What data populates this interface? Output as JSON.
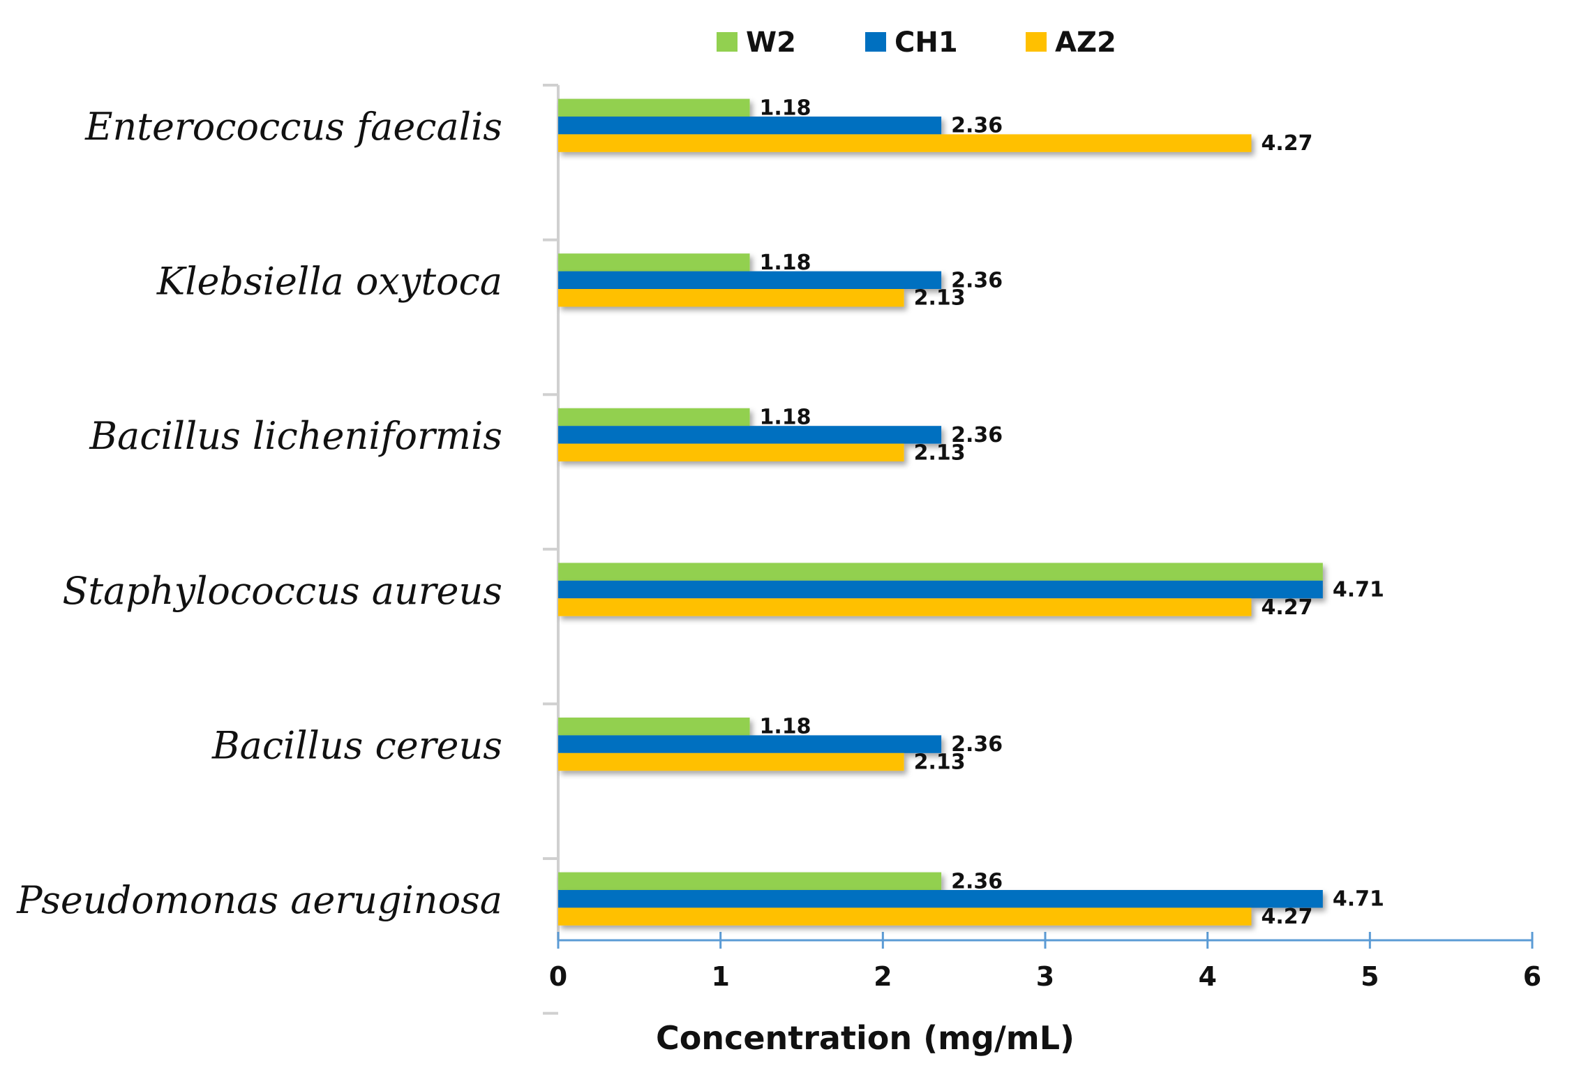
{
  "chart_data": {
    "type": "bar",
    "orientation": "horizontal",
    "title": "",
    "xlabel": "Concentration (mg/mL)",
    "ylabel": "",
    "xlim": [
      0,
      6
    ],
    "xticks": [
      0,
      1,
      2,
      3,
      4,
      5,
      6
    ],
    "legend_position": "top-center",
    "grid": false,
    "categories": [
      "Enterococcus faecalis",
      "Klebsiella oxytoca",
      "Bacillus licheniformis",
      "Staphylococcus aureus",
      "Bacillus cereus",
      "Pseudomonas aeruginosa"
    ],
    "series": [
      {
        "name": "W2",
        "color": "#92D050",
        "values": [
          1.18,
          1.18,
          1.18,
          4.71,
          1.18,
          2.36
        ],
        "labels": [
          "1.18",
          "1.18",
          "1.18",
          "",
          "1.18",
          "2.36"
        ]
      },
      {
        "name": "CH1",
        "color": "#0070C0",
        "values": [
          2.36,
          2.36,
          2.36,
          4.71,
          2.36,
          4.71
        ],
        "labels": [
          "2.36",
          "2.36",
          "2.36",
          "4.71",
          "2.36",
          "4.71"
        ]
      },
      {
        "name": "AZ2",
        "color": "#FFC000",
        "values": [
          4.27,
          2.13,
          2.13,
          4.27,
          2.13,
          4.27
        ],
        "labels": [
          "4.27",
          "2.13",
          "2.13",
          "4.27",
          "2.13",
          "4.27"
        ]
      }
    ]
  }
}
